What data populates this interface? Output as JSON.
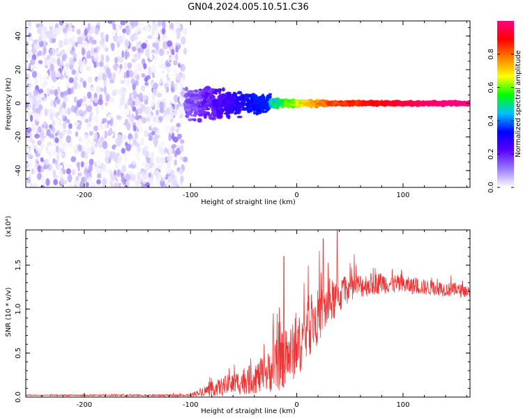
{
  "title": "GN04.2024.005.10.51.C36",
  "chart_data": [
    {
      "type": "heatmap",
      "xlabel": "Height of straight line (km)",
      "ylabel": "Frequency (Hz)",
      "xlim": [
        -255,
        163
      ],
      "ylim": [
        -50,
        49
      ],
      "xticks": [
        -200,
        -100,
        0,
        100
      ],
      "yticks": [
        -40,
        -20,
        0,
        20,
        40
      ],
      "colorbar": {
        "label": "Normalized spectral amplitude",
        "range": [
          0,
          1
        ],
        "ticks": [
          "0.0",
          "0.2",
          "0.4",
          "0.6",
          "0.8"
        ],
        "colors": [
          "#ffffff",
          "#9b7bff",
          "#5a00ff",
          "#0000ff",
          "#00c0ff",
          "#00ff00",
          "#ffff00",
          "#ff8000",
          "#ff0000",
          "#ff007f"
        ]
      },
      "regions": [
        {
          "x_range": [
            -255,
            -105
          ],
          "freq_range": [
            -50,
            49
          ],
          "amplitude": [
            0.0,
            0.15
          ],
          "pattern": "broadband noise"
        },
        {
          "x_range": [
            -105,
            -25
          ],
          "freq_center": 0,
          "freq_halfwidth": [
            12,
            6
          ],
          "amplitude": [
            0.1,
            0.35
          ],
          "pattern": "scattered"
        },
        {
          "x_range": [
            -25,
            30
          ],
          "freq_center": 0,
          "freq_halfwidth": [
            3,
            1.5
          ],
          "amplitude": [
            0.4,
            0.8
          ],
          "pattern": "narrow band"
        },
        {
          "x_range": [
            30,
            163
          ],
          "freq_center": 0,
          "freq_halfwidth": [
            1,
            1
          ],
          "amplitude": [
            0.8,
            1.0
          ],
          "pattern": "narrow band"
        }
      ]
    },
    {
      "type": "line",
      "xlabel": "Height of straight line (km)",
      "ylabel": "SNR (10 * v/v)",
      "scale_label": "(x10⁴)",
      "xlim": [
        -255,
        163
      ],
      "ylim": [
        0,
        1.9
      ],
      "xticks": [
        -200,
        -100,
        0,
        100
      ],
      "yticks": [
        "0.0",
        "0.5",
        "1.0",
        "1.5"
      ],
      "series": [
        {
          "color": "#ee3333",
          "envelope": [
            {
              "x": -255,
              "baseline": 0.02,
              "spread": 0.01
            },
            {
              "x": -100,
              "baseline": 0.02,
              "spread": 0.02
            },
            {
              "x": -90,
              "baseline": 0.06,
              "spread": 0.08
            },
            {
              "x": -70,
              "baseline": 0.12,
              "spread": 0.18
            },
            {
              "x": -50,
              "baseline": 0.18,
              "spread": 0.25
            },
            {
              "x": -30,
              "baseline": 0.25,
              "spread": 0.35
            },
            {
              "x": -15,
              "baseline": 0.4,
              "spread": 0.55
            },
            {
              "x": 0,
              "baseline": 0.55,
              "spread": 0.55
            },
            {
              "x": 15,
              "baseline": 0.85,
              "spread": 0.55
            },
            {
              "x": 30,
              "baseline": 1.05,
              "spread": 0.45
            },
            {
              "x": 50,
              "baseline": 1.25,
              "spread": 0.25
            },
            {
              "x": 80,
              "baseline": 1.3,
              "spread": 0.2
            },
            {
              "x": 120,
              "baseline": 1.25,
              "spread": 0.15
            },
            {
              "x": 163,
              "baseline": 1.2,
              "spread": 0.12
            }
          ],
          "peaks": [
            {
              "x": -12,
              "y": 1.6
            },
            {
              "x": 25,
              "y": 1.8
            },
            {
              "x": 38,
              "y": 1.9
            }
          ]
        }
      ]
    }
  ]
}
